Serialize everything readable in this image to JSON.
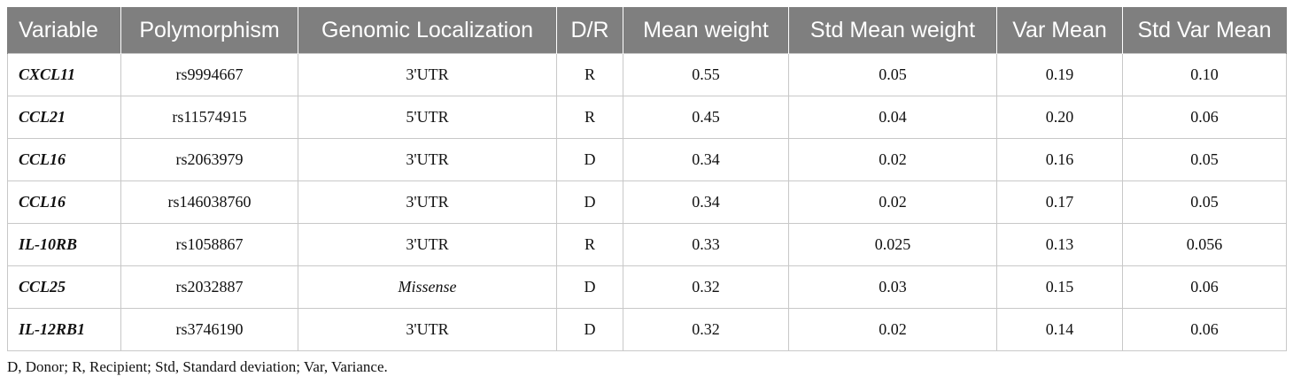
{
  "table": {
    "columns": [
      "Variable",
      "Polymorphism",
      "Genomic Localization",
      "D/R",
      "Mean weight",
      "Std Mean weight",
      "Var Mean",
      "Std Var Mean"
    ],
    "rows": [
      {
        "variable": "CXCL11",
        "polymorphism": "rs9994667",
        "localization": "3'UTR",
        "localization_italic": false,
        "dr": "R",
        "mean_weight": "0.55",
        "std_mean_weight": "0.05",
        "var_mean": "0.19",
        "std_var_mean": "0.10"
      },
      {
        "variable": "CCL21",
        "polymorphism": "rs11574915",
        "localization": "5'UTR",
        "localization_italic": false,
        "dr": "R",
        "mean_weight": "0.45",
        "std_mean_weight": "0.04",
        "var_mean": "0.20",
        "std_var_mean": "0.06"
      },
      {
        "variable": "CCL16",
        "polymorphism": "rs2063979",
        "localization": "3'UTR",
        "localization_italic": false,
        "dr": "D",
        "mean_weight": "0.34",
        "std_mean_weight": "0.02",
        "var_mean": "0.16",
        "std_var_mean": "0.05"
      },
      {
        "variable": "CCL16",
        "polymorphism": "rs146038760",
        "localization": "3'UTR",
        "localization_italic": false,
        "dr": "D",
        "mean_weight": "0.34",
        "std_mean_weight": "0.02",
        "var_mean": "0.17",
        "std_var_mean": "0.05"
      },
      {
        "variable": "IL-10RB",
        "polymorphism": "rs1058867",
        "localization": "3'UTR",
        "localization_italic": false,
        "dr": "R",
        "mean_weight": "0.33",
        "std_mean_weight": "0.025",
        "var_mean": "0.13",
        "std_var_mean": "0.056"
      },
      {
        "variable": "CCL25",
        "polymorphism": "rs2032887",
        "localization": "Missense",
        "localization_italic": true,
        "dr": "D",
        "mean_weight": "0.32",
        "std_mean_weight": "0.03",
        "var_mean": "0.15",
        "std_var_mean": "0.06"
      },
      {
        "variable": "IL-12RB1",
        "polymorphism": "rs3746190",
        "localization": "3'UTR",
        "localization_italic": false,
        "dr": "D",
        "mean_weight": "0.32",
        "std_mean_weight": "0.02",
        "var_mean": "0.14",
        "std_var_mean": "0.06"
      }
    ]
  },
  "footnote": "D, Donor; R, Recipient; Std, Standard deviation; Var, Variance.",
  "colors": {
    "header_bg": "#7f7f7f",
    "header_text": "#ffffff",
    "grid": "#c8c8c8"
  }
}
